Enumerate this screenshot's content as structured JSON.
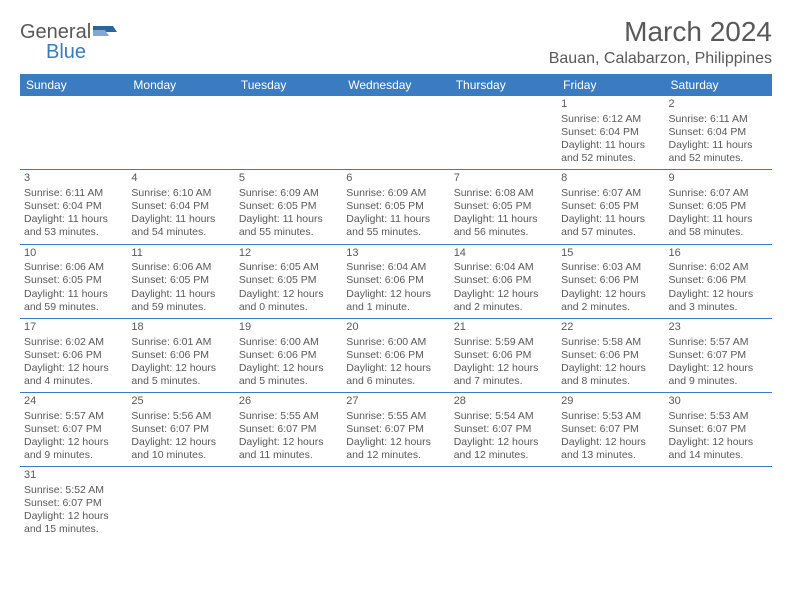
{
  "logo": {
    "text_general": "General",
    "text_blue": "Blue",
    "flag_color": "#2f6496"
  },
  "header": {
    "title": "March 2024",
    "location": "Bauan, Calabarzon, Philippines"
  },
  "colors": {
    "header_bg": "#3b7bbf",
    "header_text": "#ffffff",
    "cell_border": "#3b7bbf",
    "text_color": "#595959"
  },
  "typography": {
    "title_fontsize": 28,
    "location_fontsize": 16,
    "dayheader_fontsize": 12,
    "cell_fontsize": 10.5
  },
  "weekdays": [
    "Sunday",
    "Monday",
    "Tuesday",
    "Wednesday",
    "Thursday",
    "Friday",
    "Saturday"
  ],
  "weeks": [
    [
      null,
      null,
      null,
      null,
      null,
      {
        "day": "1",
        "sunrise": "Sunrise: 6:12 AM",
        "sunset": "Sunset: 6:04 PM",
        "daylight": "Daylight: 11 hours and 52 minutes."
      },
      {
        "day": "2",
        "sunrise": "Sunrise: 6:11 AM",
        "sunset": "Sunset: 6:04 PM",
        "daylight": "Daylight: 11 hours and 52 minutes."
      }
    ],
    [
      {
        "day": "3",
        "sunrise": "Sunrise: 6:11 AM",
        "sunset": "Sunset: 6:04 PM",
        "daylight": "Daylight: 11 hours and 53 minutes."
      },
      {
        "day": "4",
        "sunrise": "Sunrise: 6:10 AM",
        "sunset": "Sunset: 6:04 PM",
        "daylight": "Daylight: 11 hours and 54 minutes."
      },
      {
        "day": "5",
        "sunrise": "Sunrise: 6:09 AM",
        "sunset": "Sunset: 6:05 PM",
        "daylight": "Daylight: 11 hours and 55 minutes."
      },
      {
        "day": "6",
        "sunrise": "Sunrise: 6:09 AM",
        "sunset": "Sunset: 6:05 PM",
        "daylight": "Daylight: 11 hours and 55 minutes."
      },
      {
        "day": "7",
        "sunrise": "Sunrise: 6:08 AM",
        "sunset": "Sunset: 6:05 PM",
        "daylight": "Daylight: 11 hours and 56 minutes."
      },
      {
        "day": "8",
        "sunrise": "Sunrise: 6:07 AM",
        "sunset": "Sunset: 6:05 PM",
        "daylight": "Daylight: 11 hours and 57 minutes."
      },
      {
        "day": "9",
        "sunrise": "Sunrise: 6:07 AM",
        "sunset": "Sunset: 6:05 PM",
        "daylight": "Daylight: 11 hours and 58 minutes."
      }
    ],
    [
      {
        "day": "10",
        "sunrise": "Sunrise: 6:06 AM",
        "sunset": "Sunset: 6:05 PM",
        "daylight": "Daylight: 11 hours and 59 minutes."
      },
      {
        "day": "11",
        "sunrise": "Sunrise: 6:06 AM",
        "sunset": "Sunset: 6:05 PM",
        "daylight": "Daylight: 11 hours and 59 minutes."
      },
      {
        "day": "12",
        "sunrise": "Sunrise: 6:05 AM",
        "sunset": "Sunset: 6:05 PM",
        "daylight": "Daylight: 12 hours and 0 minutes."
      },
      {
        "day": "13",
        "sunrise": "Sunrise: 6:04 AM",
        "sunset": "Sunset: 6:06 PM",
        "daylight": "Daylight: 12 hours and 1 minute."
      },
      {
        "day": "14",
        "sunrise": "Sunrise: 6:04 AM",
        "sunset": "Sunset: 6:06 PM",
        "daylight": "Daylight: 12 hours and 2 minutes."
      },
      {
        "day": "15",
        "sunrise": "Sunrise: 6:03 AM",
        "sunset": "Sunset: 6:06 PM",
        "daylight": "Daylight: 12 hours and 2 minutes."
      },
      {
        "day": "16",
        "sunrise": "Sunrise: 6:02 AM",
        "sunset": "Sunset: 6:06 PM",
        "daylight": "Daylight: 12 hours and 3 minutes."
      }
    ],
    [
      {
        "day": "17",
        "sunrise": "Sunrise: 6:02 AM",
        "sunset": "Sunset: 6:06 PM",
        "daylight": "Daylight: 12 hours and 4 minutes."
      },
      {
        "day": "18",
        "sunrise": "Sunrise: 6:01 AM",
        "sunset": "Sunset: 6:06 PM",
        "daylight": "Daylight: 12 hours and 5 minutes."
      },
      {
        "day": "19",
        "sunrise": "Sunrise: 6:00 AM",
        "sunset": "Sunset: 6:06 PM",
        "daylight": "Daylight: 12 hours and 5 minutes."
      },
      {
        "day": "20",
        "sunrise": "Sunrise: 6:00 AM",
        "sunset": "Sunset: 6:06 PM",
        "daylight": "Daylight: 12 hours and 6 minutes."
      },
      {
        "day": "21",
        "sunrise": "Sunrise: 5:59 AM",
        "sunset": "Sunset: 6:06 PM",
        "daylight": "Daylight: 12 hours and 7 minutes."
      },
      {
        "day": "22",
        "sunrise": "Sunrise: 5:58 AM",
        "sunset": "Sunset: 6:06 PM",
        "daylight": "Daylight: 12 hours and 8 minutes."
      },
      {
        "day": "23",
        "sunrise": "Sunrise: 5:57 AM",
        "sunset": "Sunset: 6:07 PM",
        "daylight": "Daylight: 12 hours and 9 minutes."
      }
    ],
    [
      {
        "day": "24",
        "sunrise": "Sunrise: 5:57 AM",
        "sunset": "Sunset: 6:07 PM",
        "daylight": "Daylight: 12 hours and 9 minutes."
      },
      {
        "day": "25",
        "sunrise": "Sunrise: 5:56 AM",
        "sunset": "Sunset: 6:07 PM",
        "daylight": "Daylight: 12 hours and 10 minutes."
      },
      {
        "day": "26",
        "sunrise": "Sunrise: 5:55 AM",
        "sunset": "Sunset: 6:07 PM",
        "daylight": "Daylight: 12 hours and 11 minutes."
      },
      {
        "day": "27",
        "sunrise": "Sunrise: 5:55 AM",
        "sunset": "Sunset: 6:07 PM",
        "daylight": "Daylight: 12 hours and 12 minutes."
      },
      {
        "day": "28",
        "sunrise": "Sunrise: 5:54 AM",
        "sunset": "Sunset: 6:07 PM",
        "daylight": "Daylight: 12 hours and 12 minutes."
      },
      {
        "day": "29",
        "sunrise": "Sunrise: 5:53 AM",
        "sunset": "Sunset: 6:07 PM",
        "daylight": "Daylight: 12 hours and 13 minutes."
      },
      {
        "day": "30",
        "sunrise": "Sunrise: 5:53 AM",
        "sunset": "Sunset: 6:07 PM",
        "daylight": "Daylight: 12 hours and 14 minutes."
      }
    ],
    [
      {
        "day": "31",
        "sunrise": "Sunrise: 5:52 AM",
        "sunset": "Sunset: 6:07 PM",
        "daylight": "Daylight: 12 hours and 15 minutes."
      },
      null,
      null,
      null,
      null,
      null,
      null
    ]
  ]
}
